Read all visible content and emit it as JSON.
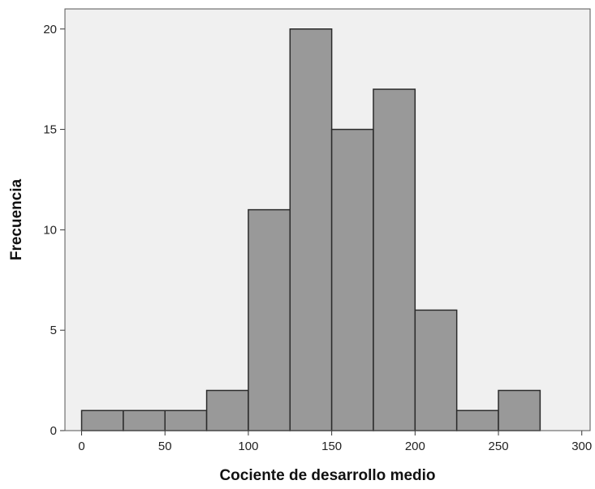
{
  "chart_data": {
    "type": "bar",
    "title": "",
    "xlabel": "Cociente de desarrollo medio",
    "ylabel": "Frecuencia",
    "bin_width": 25,
    "bins": [
      {
        "start": 0,
        "end": 25,
        "count": 1
      },
      {
        "start": 25,
        "end": 50,
        "count": 1
      },
      {
        "start": 50,
        "end": 75,
        "count": 1
      },
      {
        "start": 75,
        "end": 100,
        "count": 2
      },
      {
        "start": 100,
        "end": 125,
        "count": 11
      },
      {
        "start": 125,
        "end": 150,
        "count": 20
      },
      {
        "start": 150,
        "end": 175,
        "count": 15
      },
      {
        "start": 175,
        "end": 200,
        "count": 17
      },
      {
        "start": 200,
        "end": 225,
        "count": 6
      },
      {
        "start": 225,
        "end": 250,
        "count": 1
      },
      {
        "start": 250,
        "end": 275,
        "count": 2
      }
    ],
    "xlim": [
      -10,
      305
    ],
    "ylim": [
      0,
      21
    ],
    "x_ticks": [
      0,
      50,
      100,
      150,
      200,
      250,
      300
    ],
    "y_ticks": [
      0,
      5,
      10,
      15,
      20
    ],
    "grid": false,
    "colors": {
      "bar_fill": "#999999",
      "bar_stroke": "#2b2b2b",
      "plot_background": "#f0f0f0",
      "frame": "#555555"
    }
  }
}
